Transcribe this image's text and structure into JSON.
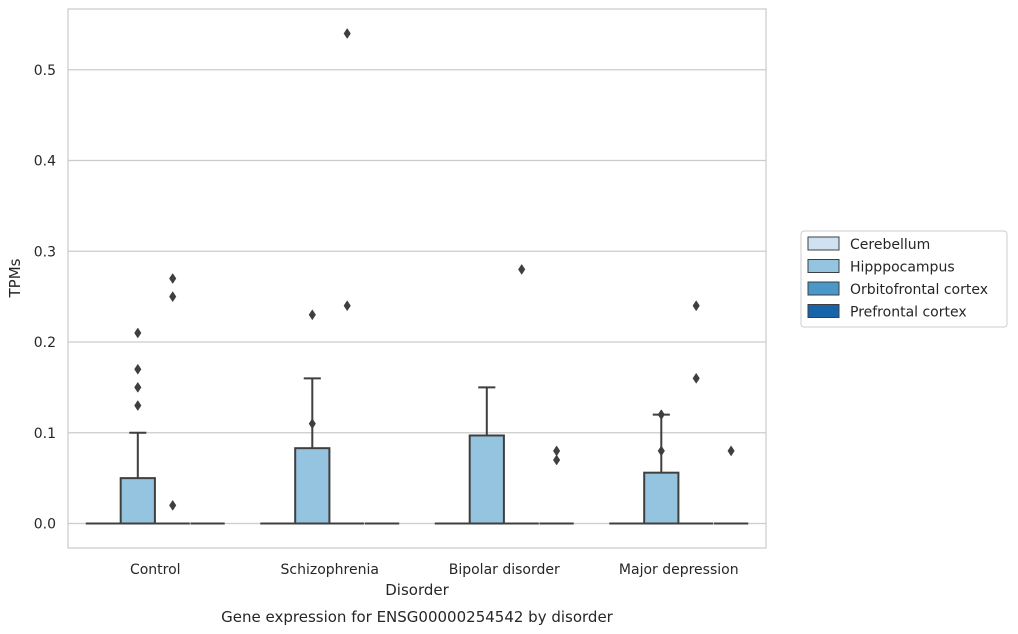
{
  "chart_data": {
    "type": "box",
    "caption": "Gene expression for ENSG00000254542 by disorder",
    "xlabel": "Disorder",
    "ylabel": "TPMs",
    "ylim": [
      -0.027,
      0.567
    ],
    "yticks": [
      0.0,
      0.1,
      0.2,
      0.3,
      0.4,
      0.5
    ],
    "ytick_labels": [
      "0.0",
      "0.1",
      "0.2",
      "0.3",
      "0.4",
      "0.5"
    ],
    "grid": "horizontal",
    "legend_position": "right",
    "categories": [
      "Control",
      "Schizophrenia",
      "Bipolar disorder",
      "Major depression"
    ],
    "series": [
      {
        "name": "Cerebellum",
        "color": "#d0e1f2",
        "boxes": [
          {
            "q1": 0,
            "median": 0,
            "q3": 0,
            "whisker_low": 0,
            "whisker_high": 0,
            "outliers": []
          },
          {
            "q1": 0,
            "median": 0,
            "q3": 0,
            "whisker_low": 0,
            "whisker_high": 0,
            "outliers": []
          },
          {
            "q1": 0,
            "median": 0,
            "q3": 0,
            "whisker_low": 0,
            "whisker_high": 0,
            "outliers": []
          },
          {
            "q1": 0,
            "median": 0,
            "q3": 0,
            "whisker_low": 0,
            "whisker_high": 0,
            "outliers": []
          }
        ]
      },
      {
        "name": "Hipppocampus",
        "color": "#94c4df",
        "boxes": [
          {
            "q1": 0,
            "median": 0,
            "q3": 0.05,
            "whisker_low": 0,
            "whisker_high": 0.1,
            "outliers": [
              0.13,
              0.15,
              0.17,
              0.21
            ]
          },
          {
            "q1": 0,
            "median": 0,
            "q3": 0.083,
            "whisker_low": 0,
            "whisker_high": 0.16,
            "outliers": [
              0.11,
              0.23
            ]
          },
          {
            "q1": 0,
            "median": 0,
            "q3": 0.097,
            "whisker_low": 0,
            "whisker_high": 0.15,
            "outliers": []
          },
          {
            "q1": 0,
            "median": 0,
            "q3": 0.056,
            "whisker_low": 0,
            "whisker_high": 0.12,
            "outliers": [
              0.08,
              0.12
            ]
          }
        ]
      },
      {
        "name": "Orbitofrontal cortex",
        "color": "#4a98c9",
        "boxes": [
          {
            "q1": 0,
            "median": 0,
            "q3": 0,
            "whisker_low": 0,
            "whisker_high": 0,
            "outliers": [
              0.02,
              0.25,
              0.27
            ]
          },
          {
            "q1": 0,
            "median": 0,
            "q3": 0,
            "whisker_low": 0,
            "whisker_high": 0,
            "outliers": [
              0.24,
              0.54
            ]
          },
          {
            "q1": 0,
            "median": 0,
            "q3": 0,
            "whisker_low": 0,
            "whisker_high": 0,
            "outliers": [
              0.28
            ]
          },
          {
            "q1": 0,
            "median": 0,
            "q3": 0,
            "whisker_low": 0,
            "whisker_high": 0,
            "outliers": [
              0.16,
              0.24
            ]
          }
        ]
      },
      {
        "name": "Prefrontal cortex",
        "color": "#1764ab",
        "boxes": [
          {
            "q1": 0,
            "median": 0,
            "q3": 0,
            "whisker_low": 0,
            "whisker_high": 0,
            "outliers": []
          },
          {
            "q1": 0,
            "median": 0,
            "q3": 0,
            "whisker_low": 0,
            "whisker_high": 0,
            "outliers": []
          },
          {
            "q1": 0,
            "median": 0,
            "q3": 0,
            "whisker_low": 0,
            "whisker_high": 0,
            "outliers": [
              0.07,
              0.08
            ]
          },
          {
            "q1": 0,
            "median": 0,
            "q3": 0,
            "whisker_low": 0,
            "whisker_high": 0,
            "outliers": [
              0.08
            ]
          }
        ]
      }
    ]
  }
}
